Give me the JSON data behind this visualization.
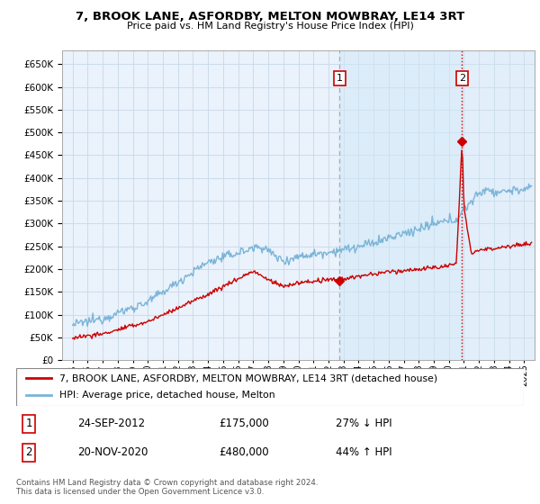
{
  "title": "7, BROOK LANE, ASFORDBY, MELTON MOWBRAY, LE14 3RT",
  "subtitle": "Price paid vs. HM Land Registry's House Price Index (HPI)",
  "legend_line1": "7, BROOK LANE, ASFORDBY, MELTON MOWBRAY, LE14 3RT (detached house)",
  "legend_line2": "HPI: Average price, detached house, Melton",
  "transaction1_date": "24-SEP-2012",
  "transaction1_price": "£175,000",
  "transaction1_hpi": "27% ↓ HPI",
  "transaction2_date": "20-NOV-2020",
  "transaction2_price": "£480,000",
  "transaction2_hpi": "44% ↑ HPI",
  "footer": "Contains HM Land Registry data © Crown copyright and database right 2024.\nThis data is licensed under the Open Government Licence v3.0.",
  "hpi_color": "#7ab4d8",
  "price_color": "#cc0000",
  "vline1_color": "#aaaaaa",
  "vline2_color": "#cc0000",
  "background_color": "#ffffff",
  "plot_bg_color": "#eaf2fb",
  "shade_color": "#d0e8f8",
  "grid_color": "#c8d8e8",
  "ylim_min": 0,
  "ylim_max": 680000,
  "yticks": [
    0,
    50000,
    100000,
    150000,
    200000,
    250000,
    300000,
    350000,
    400000,
    450000,
    500000,
    550000,
    600000,
    650000
  ],
  "transaction1_year": 2012.73,
  "transaction1_value": 175000,
  "transaction2_year": 2020.88,
  "transaction2_value": 480000,
  "xlim_min": 1994.3,
  "xlim_max": 2025.7
}
